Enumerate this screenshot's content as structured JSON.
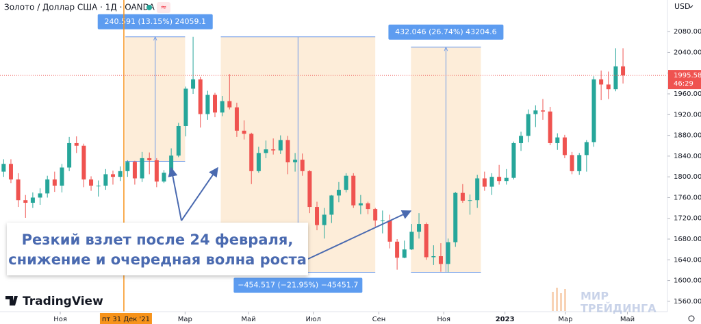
{
  "chart_data": {
    "type": "candlestick",
    "title": "Золото / Доллар США · 1Д · OANDA",
    "currency": "USD",
    "up_color": "#26a69a",
    "down_color": "#ef5350",
    "open": [
      1810,
      1825,
      1795,
      1755,
      1750,
      1760,
      1768,
      1795,
      1783,
      1818,
      1865,
      1860,
      1795,
      1783,
      1783,
      1805,
      1800,
      1811,
      1829,
      1797,
      1836,
      1832,
      1791,
      1808,
      1841,
      1898,
      1970,
      1988,
      1921,
      1958,
      1924,
      1946,
      1934,
      1889,
      1883,
      1811,
      1846,
      1853,
      1851,
      1871,
      1828,
      1833,
      1811,
      1742,
      1707,
      1727,
      1764,
      1775,
      1802,
      1745,
      1749,
      1738,
      1716,
      1716,
      1675,
      1644,
      1660,
      1694,
      1709,
      1645,
      1647,
      1632,
      1674,
      1769,
      1754,
      1755,
      1797,
      1781,
      1800,
      1792,
      1798,
      1865,
      1879,
      1921,
      1928,
      1926,
      1865,
      1876,
      1842,
      1811,
      1842,
      1867,
      1988,
      1978,
      1969,
      2013
    ],
    "high": [
      1834,
      1834,
      1807,
      1765,
      1770,
      1778,
      1802,
      1810,
      1825,
      1877,
      1878,
      1864,
      1801,
      1793,
      1815,
      1812,
      1820,
      1832,
      1831,
      1848,
      1847,
      1836,
      1813,
      1855,
      1904,
      1974,
      2070,
      1993,
      1966,
      1962,
      1956,
      1998,
      1943,
      1909,
      1885,
      1858,
      1870,
      1874,
      1880,
      1879,
      1846,
      1845,
      1813,
      1752,
      1740,
      1765,
      1790,
      1807,
      1807,
      1765,
      1752,
      1740,
      1735,
      1727,
      1680,
      1677,
      1709,
      1730,
      1712,
      1668,
      1672,
      1681,
      1771,
      1786,
      1766,
      1804,
      1810,
      1807,
      1823,
      1815,
      1868,
      1887,
      1930,
      1938,
      1950,
      1935,
      1884,
      1881,
      1848,
      1846,
      1871,
      1994,
      2005,
      2003,
      2048,
      2048
    ],
    "low": [
      1800,
      1788,
      1742,
      1721,
      1740,
      1746,
      1760,
      1771,
      1770,
      1811,
      1846,
      1780,
      1773,
      1762,
      1775,
      1785,
      1792,
      1800,
      1785,
      1790,
      1805,
      1780,
      1788,
      1802,
      1838,
      1878,
      1960,
      1895,
      1910,
      1915,
      1917,
      1930,
      1877,
      1872,
      1786,
      1808,
      1836,
      1843,
      1844,
      1805,
      1810,
      1802,
      1730,
      1697,
      1681,
      1711,
      1751,
      1770,
      1740,
      1728,
      1728,
      1704,
      1691,
      1662,
      1621,
      1643,
      1659,
      1681,
      1640,
      1630,
      1617,
      1616,
      1665,
      1750,
      1727,
      1740,
      1773,
      1765,
      1785,
      1785,
      1795,
      1850,
      1867,
      1896,
      1910,
      1861,
      1852,
      1836,
      1805,
      1804,
      1810,
      1858,
      1948,
      1950,
      1965,
      1980
    ],
    "close": [
      1825,
      1795,
      1755,
      1750,
      1760,
      1768,
      1795,
      1783,
      1818,
      1865,
      1860,
      1795,
      1783,
      1783,
      1805,
      1800,
      1811,
      1829,
      1797,
      1836,
      1832,
      1791,
      1808,
      1841,
      1898,
      1970,
      1988,
      1921,
      1958,
      1924,
      1946,
      1934,
      1889,
      1883,
      1811,
      1846,
      1853,
      1851,
      1871,
      1828,
      1833,
      1811,
      1742,
      1707,
      1727,
      1764,
      1775,
      1802,
      1745,
      1749,
      1738,
      1716,
      1716,
      1675,
      1644,
      1660,
      1694,
      1709,
      1645,
      1647,
      1632,
      1674,
      1769,
      1754,
      1755,
      1797,
      1781,
      1800,
      1792,
      1798,
      1865,
      1879,
      1921,
      1928,
      1926,
      1865,
      1876,
      1842,
      1811,
      1842,
      1867,
      1988,
      1978,
      1969,
      2013,
      1995.58
    ],
    "xlim": [
      -0.5,
      91.1
    ],
    "ylim": [
      1540,
      2141
    ],
    "yticks": [
      {
        "value": 1560,
        "label": "1560.000"
      },
      {
        "value": 1600,
        "label": "1600.000"
      },
      {
        "value": 1640,
        "label": "1640.000"
      },
      {
        "value": 1680,
        "label": "1680.000"
      },
      {
        "value": 1720,
        "label": "1720.000"
      },
      {
        "value": 1760,
        "label": "1760.000"
      },
      {
        "value": 1800,
        "label": "1800.000"
      },
      {
        "value": 1840,
        "label": "1840.000"
      },
      {
        "value": 1880,
        "label": "1880.000"
      },
      {
        "value": 1920,
        "label": "1920.000"
      },
      {
        "value": 1960,
        "label": "1960.000"
      },
      {
        "value": 2000,
        "label": "2000.000"
      },
      {
        "value": 2040,
        "label": "2040.000"
      },
      {
        "value": 2080,
        "label": "2080.000"
      }
    ],
    "xticks": [
      {
        "value": 7.77,
        "label": "Ноя"
      },
      {
        "value": 24.9,
        "label": "Мар"
      },
      {
        "value": 33.6,
        "label": "Май"
      },
      {
        "value": 42.5,
        "label": "Июл"
      },
      {
        "value": 51.5,
        "label": "Сен"
      },
      {
        "value": 60.4,
        "label": "Ноя"
      },
      {
        "value": 68.8,
        "label": "2023"
      },
      {
        "value": 77.1,
        "label": "Мар"
      },
      {
        "value": 85.6,
        "label": "Май"
      }
    ],
    "crosshair": {
      "x": 16.5,
      "label": "пт 31 Дек '21"
    },
    "last_price": {
      "value": 1995.58,
      "label": "1995.580"
    },
    "countdown": "46:29",
    "measures": [
      {
        "x": [
          16.7,
          24.9
        ],
        "from": 1830,
        "to": 2070,
        "label": "240.591 (13.15%) 24059.1"
      },
      {
        "x": [
          29.8,
          51.0
        ],
        "from": 2070,
        "to": 1616,
        "label": "−454.517 (−21.95%) −45451.7"
      },
      {
        "x": [
          55.9,
          65.5
        ],
        "from": 1616,
        "to": 2050,
        "label": "432.046 (26.74%) 43204.6"
      }
    ],
    "callout": [
      "Резкий взлет после 24 февраля,",
      "снижение и очередная волна роста"
    ],
    "brand": "TradingView",
    "watermark": [
      "МИР",
      "ТРЕЙДИНГА"
    ]
  }
}
